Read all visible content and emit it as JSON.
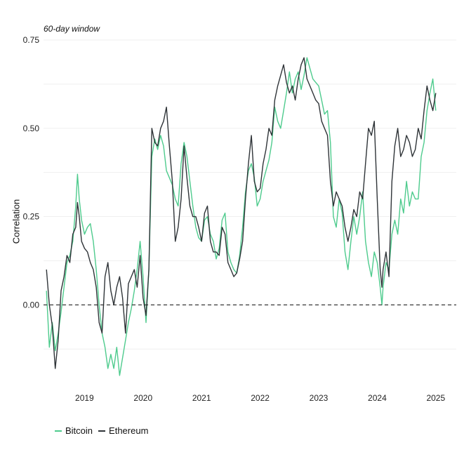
{
  "chart_data": {
    "type": "line",
    "subtitle": "60-day window",
    "ylabel": "Correlation",
    "xlabel": "",
    "xlim": [
      2018.3,
      2025.35
    ],
    "ylim": [
      -0.22,
      0.76
    ],
    "yticks": [
      0.0,
      0.25,
      0.5,
      0.75
    ],
    "ytick_labels": [
      "0.00",
      "0.25",
      "0.50",
      "0.75"
    ],
    "xticks": [
      2019,
      2020,
      2021,
      2022,
      2023,
      2024,
      2025
    ],
    "xtick_labels": [
      "2019",
      "2020",
      "2021",
      "2022",
      "2023",
      "2024",
      "2025"
    ],
    "reference_line": {
      "y": 0.0,
      "style": "dashed"
    },
    "grid": "horizontal",
    "legend_position": "bottom-left",
    "colors": {
      "Bitcoin": "#4ecb8d",
      "Ethereum": "#2f3438"
    },
    "series": [
      {
        "name": "Bitcoin",
        "x": [
          2018.35,
          2018.4,
          2018.45,
          2018.5,
          2018.55,
          2018.6,
          2018.65,
          2018.7,
          2018.75,
          2018.8,
          2018.85,
          2018.88,
          2018.91,
          2018.95,
          2019.0,
          2019.05,
          2019.1,
          2019.15,
          2019.2,
          2019.25,
          2019.3,
          2019.35,
          2019.4,
          2019.45,
          2019.5,
          2019.55,
          2019.6,
          2019.65,
          2019.7,
          2019.75,
          2019.8,
          2019.85,
          2019.9,
          2019.95,
          2020.0,
          2020.05,
          2020.1,
          2020.15,
          2020.2,
          2020.25,
          2020.3,
          2020.35,
          2020.4,
          2020.45,
          2020.5,
          2020.55,
          2020.6,
          2020.65,
          2020.7,
          2020.75,
          2020.8,
          2020.85,
          2020.9,
          2020.95,
          2021.0,
          2021.05,
          2021.1,
          2021.15,
          2021.2,
          2021.25,
          2021.3,
          2021.35,
          2021.4,
          2021.45,
          2021.5,
          2021.55,
          2021.6,
          2021.65,
          2021.7,
          2021.75,
          2021.8,
          2021.85,
          2021.9,
          2021.95,
          2022.0,
          2022.05,
          2022.1,
          2022.15,
          2022.2,
          2022.25,
          2022.3,
          2022.35,
          2022.4,
          2022.45,
          2022.5,
          2022.55,
          2022.6,
          2022.65,
          2022.7,
          2022.75,
          2022.8,
          2022.85,
          2022.9,
          2022.95,
          2023.0,
          2023.05,
          2023.1,
          2023.15,
          2023.2,
          2023.25,
          2023.3,
          2023.35,
          2023.4,
          2023.45,
          2023.5,
          2023.55,
          2023.6,
          2023.65,
          2023.7,
          2023.75,
          2023.8,
          2023.85,
          2023.9,
          2023.95,
          2024.0,
          2024.05,
          2024.08,
          2024.1,
          2024.15,
          2024.2,
          2024.25,
          2024.3,
          2024.35,
          2024.4,
          2024.45,
          2024.5,
          2024.55,
          2024.6,
          2024.65,
          2024.7,
          2024.75,
          2024.8,
          2024.85,
          2024.9,
          2024.95,
          2025.0
        ],
        "y": [
          0.04,
          -0.12,
          -0.05,
          -0.13,
          -0.08,
          -0.02,
          0.05,
          0.12,
          0.14,
          0.18,
          0.28,
          0.37,
          0.3,
          0.24,
          0.2,
          0.22,
          0.23,
          0.18,
          0.1,
          0.0,
          -0.08,
          -0.12,
          -0.18,
          -0.14,
          -0.18,
          -0.12,
          -0.2,
          -0.15,
          -0.1,
          -0.05,
          -0.01,
          0.04,
          0.1,
          0.18,
          0.08,
          -0.05,
          0.1,
          0.42,
          0.47,
          0.44,
          0.48,
          0.45,
          0.38,
          0.36,
          0.34,
          0.3,
          0.28,
          0.4,
          0.46,
          0.42,
          0.35,
          0.28,
          0.22,
          0.19,
          0.18,
          0.24,
          0.25,
          0.2,
          0.18,
          0.13,
          0.16,
          0.24,
          0.26,
          0.15,
          0.12,
          0.1,
          0.09,
          0.14,
          0.22,
          0.32,
          0.38,
          0.4,
          0.36,
          0.28,
          0.3,
          0.35,
          0.38,
          0.41,
          0.46,
          0.56,
          0.52,
          0.5,
          0.55,
          0.6,
          0.66,
          0.6,
          0.64,
          0.66,
          0.61,
          0.65,
          0.7,
          0.67,
          0.64,
          0.63,
          0.62,
          0.58,
          0.54,
          0.55,
          0.46,
          0.25,
          0.22,
          0.3,
          0.26,
          0.15,
          0.1,
          0.18,
          0.25,
          0.2,
          0.25,
          0.32,
          0.18,
          0.12,
          0.08,
          0.15,
          0.12,
          0.05,
          0.0,
          0.05,
          0.12,
          0.1,
          0.2,
          0.24,
          0.2,
          0.3,
          0.26,
          0.35,
          0.28,
          0.32,
          0.3,
          0.3,
          0.42,
          0.46,
          0.55,
          0.6,
          0.64,
          0.55
        ]
      },
      {
        "name": "Ethereum",
        "x": [
          2018.35,
          2018.4,
          2018.45,
          2018.5,
          2018.55,
          2018.6,
          2018.65,
          2018.7,
          2018.75,
          2018.8,
          2018.85,
          2018.88,
          2018.91,
          2018.95,
          2019.0,
          2019.05,
          2019.1,
          2019.15,
          2019.2,
          2019.25,
          2019.3,
          2019.35,
          2019.4,
          2019.45,
          2019.5,
          2019.55,
          2019.6,
          2019.65,
          2019.7,
          2019.75,
          2019.8,
          2019.85,
          2019.9,
          2019.95,
          2020.0,
          2020.05,
          2020.1,
          2020.15,
          2020.2,
          2020.25,
          2020.3,
          2020.35,
          2020.4,
          2020.45,
          2020.5,
          2020.55,
          2020.6,
          2020.65,
          2020.7,
          2020.75,
          2020.8,
          2020.85,
          2020.9,
          2020.95,
          2021.0,
          2021.05,
          2021.1,
          2021.15,
          2021.2,
          2021.25,
          2021.3,
          2021.35,
          2021.4,
          2021.45,
          2021.5,
          2021.55,
          2021.6,
          2021.65,
          2021.7,
          2021.75,
          2021.8,
          2021.85,
          2021.9,
          2021.95,
          2022.0,
          2022.05,
          2022.1,
          2022.15,
          2022.2,
          2022.25,
          2022.3,
          2022.35,
          2022.4,
          2022.45,
          2022.5,
          2022.55,
          2022.6,
          2022.65,
          2022.7,
          2022.75,
          2022.8,
          2022.85,
          2022.9,
          2022.95,
          2023.0,
          2023.05,
          2023.1,
          2023.15,
          2023.2,
          2023.25,
          2023.3,
          2023.35,
          2023.4,
          2023.45,
          2023.5,
          2023.55,
          2023.6,
          2023.65,
          2023.7,
          2023.75,
          2023.8,
          2023.85,
          2023.9,
          2023.95,
          2024.0,
          2024.05,
          2024.08,
          2024.1,
          2024.15,
          2024.2,
          2024.25,
          2024.3,
          2024.35,
          2024.4,
          2024.45,
          2024.5,
          2024.55,
          2024.6,
          2024.65,
          2024.7,
          2024.75,
          2024.8,
          2024.85,
          2024.9,
          2024.95,
          2025.0
        ],
        "y": [
          0.1,
          0.0,
          -0.06,
          -0.18,
          -0.1,
          0.04,
          0.08,
          0.14,
          0.12,
          0.2,
          0.22,
          0.29,
          0.25,
          0.18,
          0.16,
          0.15,
          0.12,
          0.1,
          0.05,
          -0.05,
          -0.08,
          0.08,
          0.12,
          0.04,
          0.0,
          0.05,
          0.08,
          0.02,
          -0.08,
          0.06,
          0.08,
          0.1,
          0.05,
          0.14,
          0.02,
          -0.03,
          0.1,
          0.5,
          0.46,
          0.45,
          0.5,
          0.52,
          0.56,
          0.45,
          0.35,
          0.18,
          0.22,
          0.3,
          0.45,
          0.36,
          0.28,
          0.25,
          0.25,
          0.22,
          0.18,
          0.26,
          0.28,
          0.18,
          0.15,
          0.15,
          0.14,
          0.22,
          0.2,
          0.12,
          0.1,
          0.08,
          0.09,
          0.13,
          0.18,
          0.3,
          0.4,
          0.48,
          0.35,
          0.32,
          0.33,
          0.4,
          0.44,
          0.5,
          0.48,
          0.58,
          0.62,
          0.65,
          0.68,
          0.63,
          0.6,
          0.62,
          0.58,
          0.64,
          0.68,
          0.7,
          0.64,
          0.62,
          0.6,
          0.58,
          0.57,
          0.52,
          0.5,
          0.48,
          0.35,
          0.28,
          0.32,
          0.3,
          0.28,
          0.22,
          0.18,
          0.22,
          0.27,
          0.25,
          0.32,
          0.3,
          0.4,
          0.5,
          0.48,
          0.52,
          0.3,
          0.1,
          0.05,
          0.1,
          0.15,
          0.08,
          0.35,
          0.45,
          0.5,
          0.42,
          0.44,
          0.48,
          0.46,
          0.42,
          0.44,
          0.5,
          0.47,
          0.55,
          0.62,
          0.58,
          0.55,
          0.6
        ]
      }
    ]
  }
}
